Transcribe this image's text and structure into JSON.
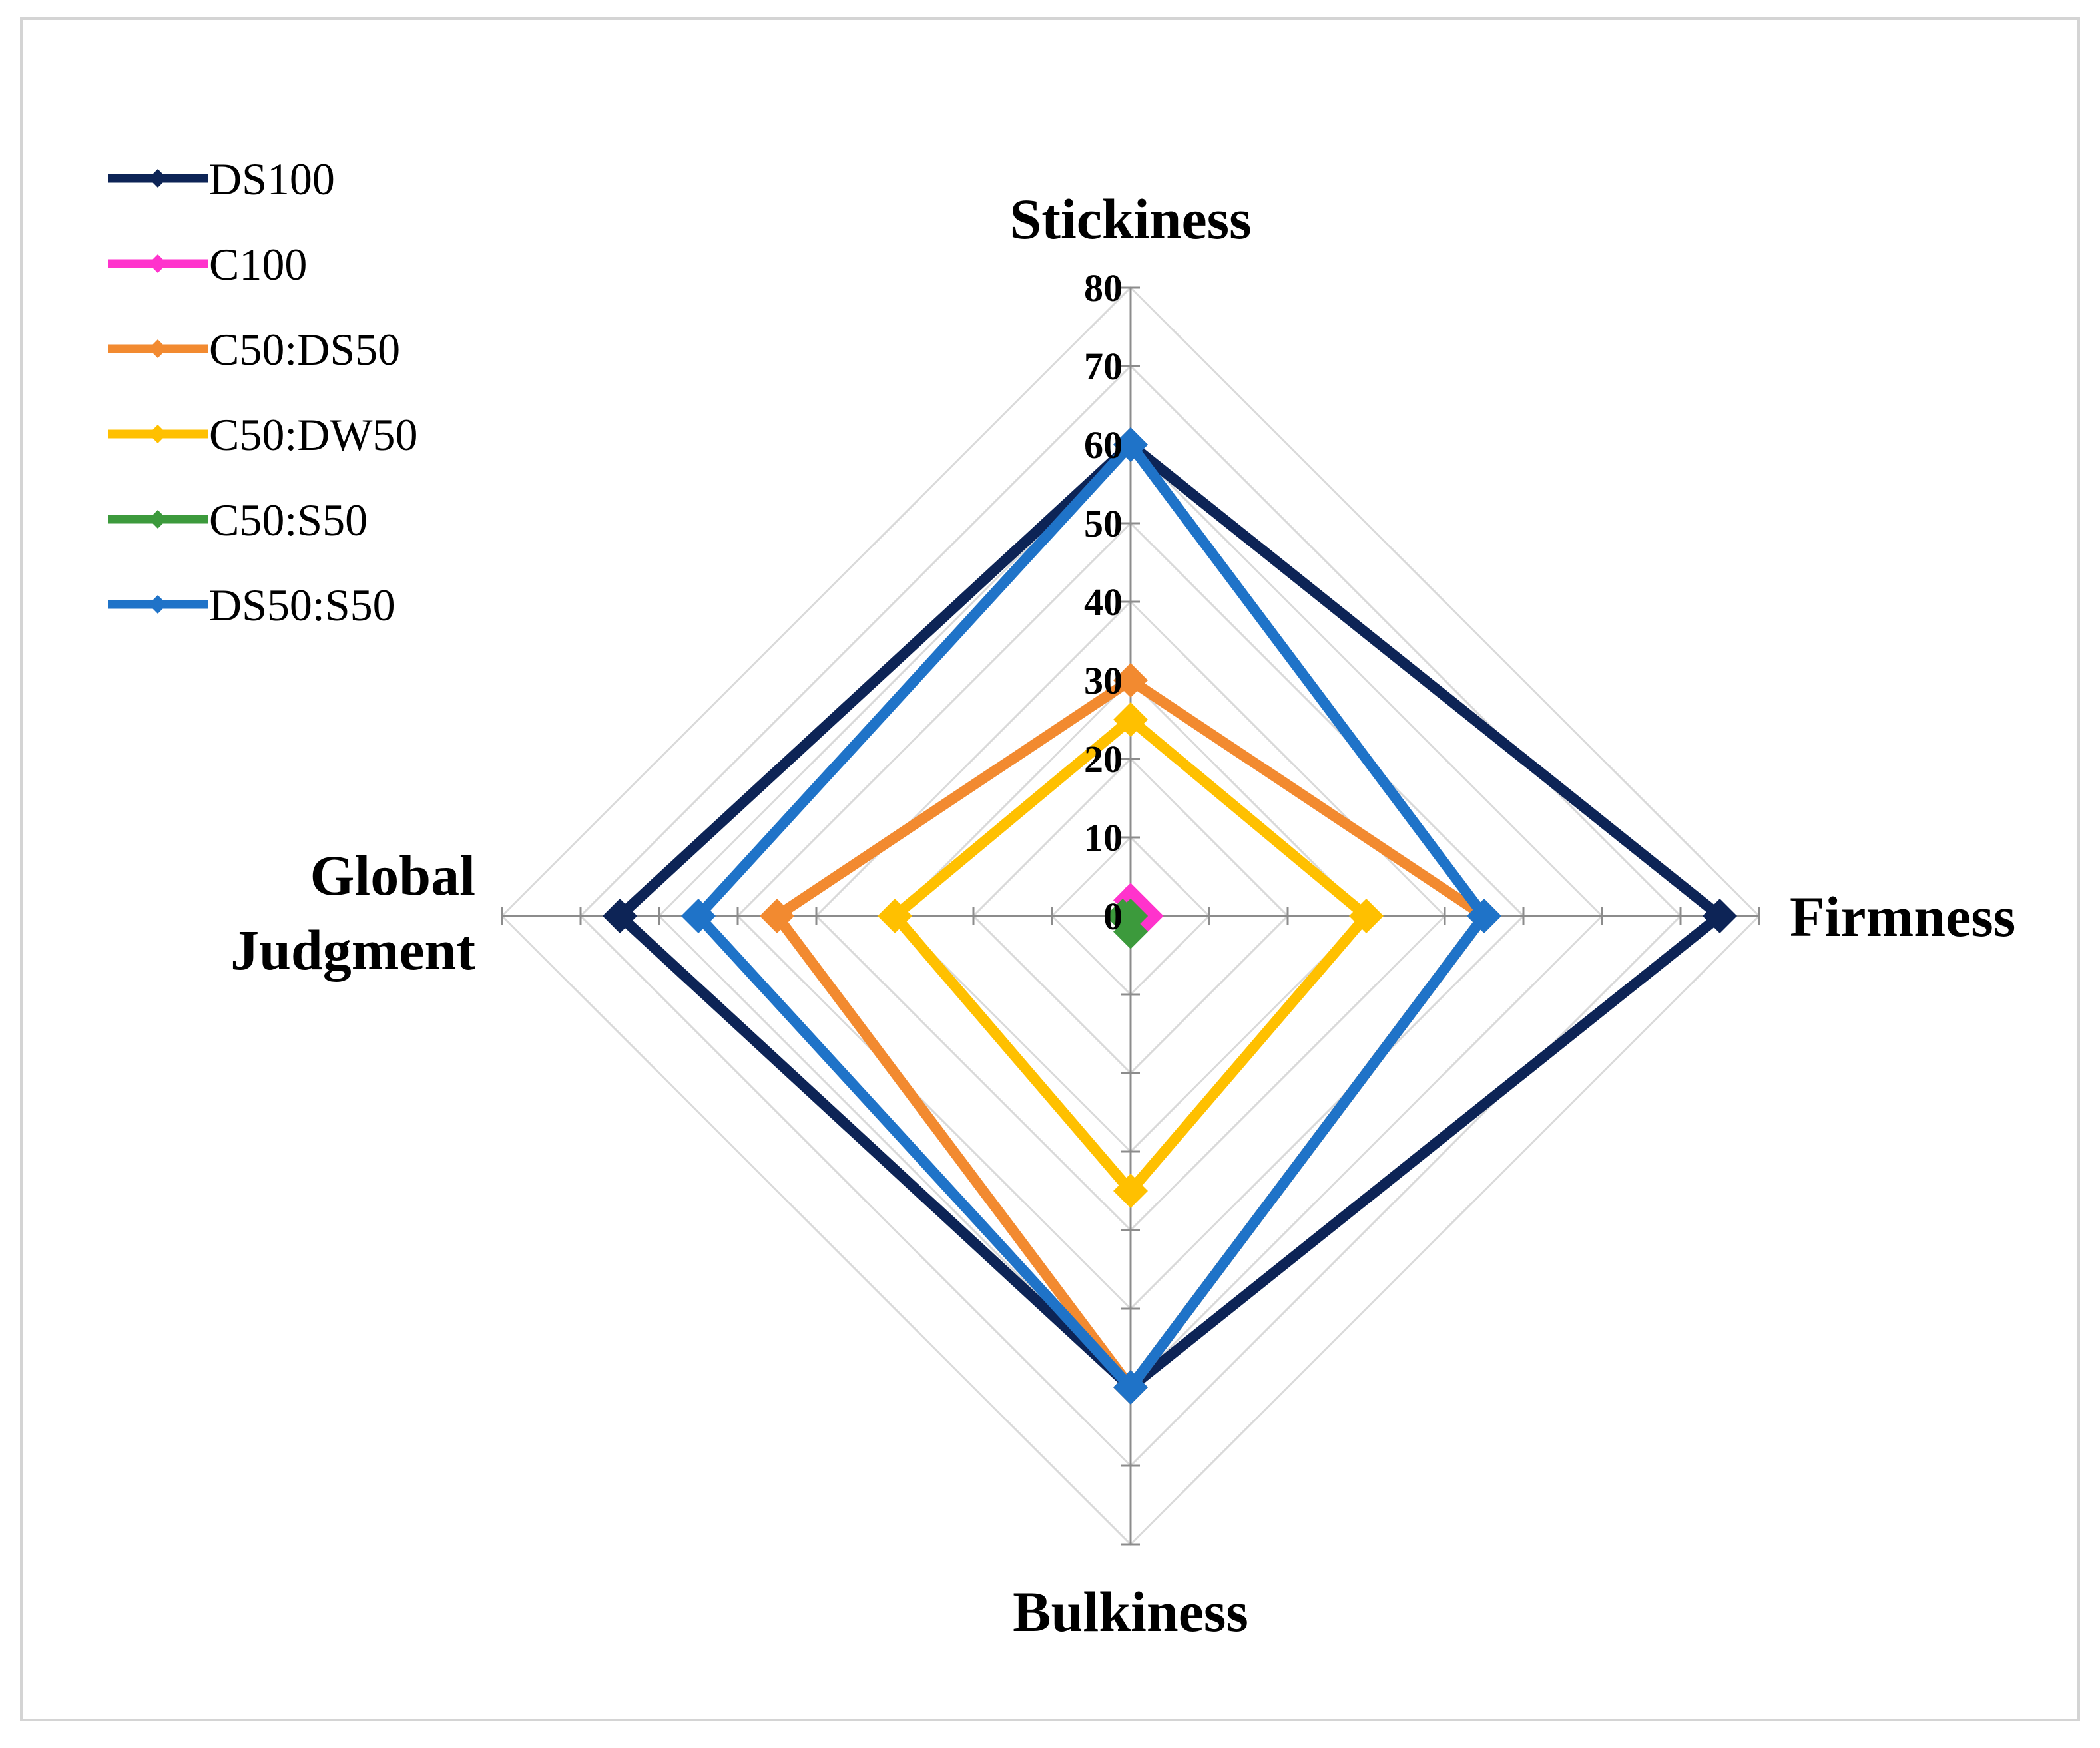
{
  "chart_data": {
    "type": "radar",
    "axes": [
      "Stickiness",
      "Firmness",
      "Bulkiness",
      "Global Judgment"
    ],
    "axis_label_lines": [
      [
        "Stickiness"
      ],
      [
        "Firmness"
      ],
      [
        "Bulkiness"
      ],
      [
        "Global",
        "Judgment"
      ]
    ],
    "r_range": [
      0,
      80
    ],
    "r_major_step": 10,
    "tick_labels": [
      "0",
      "10",
      "20",
      "30",
      "40",
      "50",
      "60",
      "70",
      "80"
    ],
    "grid": true,
    "legend_position": "top-left",
    "series": [
      {
        "name": "DS100",
        "color": "#0d2456",
        "values": [
          60,
          75,
          60,
          65
        ]
      },
      {
        "name": "C100",
        "color": "#ff33cc",
        "values": [
          2,
          2,
          0,
          0
        ]
      },
      {
        "name": "C50:DS50",
        "color": "#f28a30",
        "values": [
          30,
          45,
          60,
          45
        ]
      },
      {
        "name": "C50:DW50",
        "color": "#ffc000",
        "values": [
          25,
          30,
          35,
          30
        ]
      },
      {
        "name": "C50:S50",
        "color": "#3c9a3c",
        "values": [
          0,
          0,
          2,
          1
        ]
      },
      {
        "name": "DS50:S50",
        "color": "#1f73c8",
        "values": [
          60,
          45,
          60,
          55
        ]
      }
    ]
  }
}
